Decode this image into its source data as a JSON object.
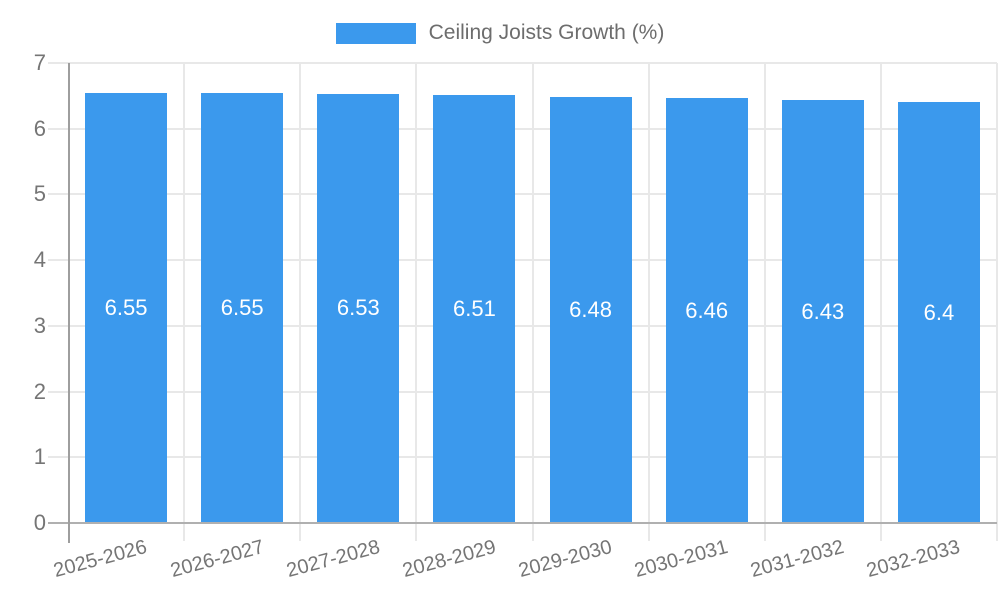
{
  "chart_data": {
    "type": "bar",
    "title": "Ceiling Joists Growth (%)",
    "categories": [
      "2025-2026",
      "2026-2027",
      "2027-2028",
      "2028-2029",
      "2029-2030",
      "2030-2031",
      "2031-2032",
      "2032-2033"
    ],
    "values": [
      6.55,
      6.55,
      6.53,
      6.51,
      6.48,
      6.46,
      6.43,
      6.4
    ],
    "value_labels": [
      "6.55",
      "6.55",
      "6.53",
      "6.51",
      "6.48",
      "6.46",
      "6.43",
      "6.4"
    ],
    "yticks": [
      0,
      1,
      2,
      3,
      4,
      5,
      6,
      7
    ],
    "ytick_labels": [
      "0",
      "1",
      "2",
      "3",
      "4",
      "5",
      "6",
      "7"
    ],
    "ylim": [
      0,
      7
    ],
    "xlabel": "",
    "ylabel": "",
    "grid": true,
    "legend_position": "top-center",
    "colors": {
      "bar": "#3B99ED",
      "gridline": "#e8e8e8",
      "axis": "#b0b0b0",
      "tick_text": "#757575",
      "legend_text": "#6d6d6d",
      "value_label_text": "#ffffff",
      "background": "#ffffff"
    }
  }
}
